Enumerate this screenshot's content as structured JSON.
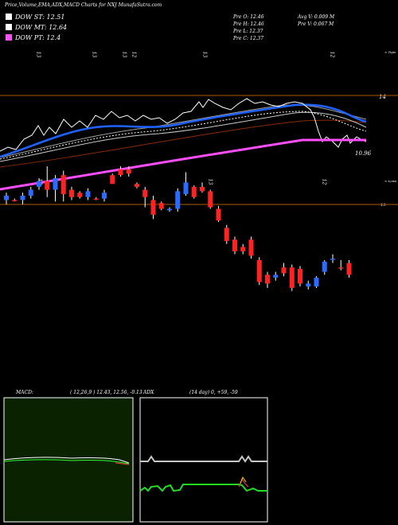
{
  "header": {
    "title": "Price,Volume,EMA,ADX,MACD Charts for NXJ MunafaSutra.com"
  },
  "legend": [
    {
      "label": "DOW ST: 12.51",
      "color": "#ffffff"
    },
    {
      "label": "DOW MT: 12.64",
      "color": "#ffffff"
    },
    {
      "label": "DOW PT: 12.4",
      "color": "#ff4dff"
    }
  ],
  "ohlc_info": {
    "open": "Pre   O: 12.46",
    "high": "Pre   H: 12.46",
    "low": "Pre   L: 12.37",
    "close": "Pre   C: 12.37",
    "avg_volume": "Avg V: 0.009 M",
    "pre_volume": "Pre   V: 0.067 M"
  },
  "labels": {
    "top_marker": "< Tops",
    "low_marker": "< Lows",
    "price_14": "14",
    "price_1096": "10.96",
    "price_13": "13",
    "top_ticks": [
      "13",
      "13",
      "13",
      "12",
      "13",
      "12"
    ],
    "mid_ticks": [
      "12",
      "13",
      "12"
    ]
  },
  "macd": {
    "label": "MACD:",
    "values": "( 12,26,9 ) 12.43,  12.56,  -0.13"
  },
  "adx": {
    "label": "ADX",
    "values": "(14  day) 0,  +59,  -59"
  },
  "chart_data": {
    "type": "candlestick",
    "title": "Price,Volume,EMA,ADX,MACD Charts for NXJ MunafaSutra.com",
    "reference_lines": [
      14,
      13
    ],
    "candles": [
      {
        "o": 13.03,
        "c": 13.06,
        "h": 13.08,
        "l": 13.0,
        "color": "blue"
      },
      {
        "o": 13.03,
        "c": 13.03,
        "h": 13.04,
        "l": 13.02,
        "color": "red"
      },
      {
        "o": 13.03,
        "c": 13.06,
        "h": 13.08,
        "l": 13.0,
        "color": "blue"
      },
      {
        "o": 13.06,
        "c": 13.1,
        "h": 13.12,
        "l": 13.04,
        "color": "blue"
      },
      {
        "o": 13.12,
        "c": 13.16,
        "h": 13.18,
        "l": 13.1,
        "color": "blue"
      },
      {
        "o": 13.16,
        "c": 13.1,
        "h": 13.26,
        "l": 13.05,
        "color": "red"
      },
      {
        "o": 13.1,
        "c": 13.18,
        "h": 13.2,
        "l": 13.02,
        "color": "blue"
      },
      {
        "o": 13.2,
        "c": 13.07,
        "h": 13.23,
        "l": 13.02,
        "color": "red"
      },
      {
        "o": 13.1,
        "c": 13.05,
        "h": 13.12,
        "l": 13.03,
        "color": "red"
      },
      {
        "o": 13.08,
        "c": 13.05,
        "h": 13.09,
        "l": 13.04,
        "color": "red"
      },
      {
        "o": 13.05,
        "c": 13.09,
        "h": 13.11,
        "l": 13.03,
        "color": "blue"
      },
      {
        "o": 13.04,
        "c": 13.04,
        "h": 13.05,
        "l": 13.03,
        "color": "red"
      },
      {
        "o": 13.04,
        "c": 13.08,
        "h": 13.1,
        "l": 13.02,
        "color": "blue"
      },
      {
        "o": 13.14,
        "c": 13.2,
        "h": 13.21,
        "l": 13.14,
        "color": "red"
      },
      {
        "o": 13.2,
        "c": 13.24,
        "h": 13.26,
        "l": 13.19,
        "color": "red"
      },
      {
        "o": 13.24,
        "c": 13.21,
        "h": 13.26,
        "l": 13.19,
        "color": "red"
      },
      {
        "o": 13.12,
        "c": 13.14,
        "h": 13.15,
        "l": 13.11,
        "color": "red"
      },
      {
        "o": 13.05,
        "c": 13.1,
        "h": 13.12,
        "l": 12.98,
        "color": "red"
      },
      {
        "o": 13.03,
        "c": 12.93,
        "h": 13.06,
        "l": 12.9,
        "color": "red"
      },
      {
        "o": 13.01,
        "c": 12.97,
        "h": 13.02,
        "l": 12.96,
        "color": "red"
      },
      {
        "o": 12.96,
        "c": 12.97,
        "h": 12.98,
        "l": 12.95,
        "color": "blue"
      },
      {
        "o": 12.97,
        "c": 13.09,
        "h": 13.11,
        "l": 12.95,
        "color": "blue"
      },
      {
        "o": 13.15,
        "c": 13.07,
        "h": 13.22,
        "l": 13.06,
        "color": "blue"
      },
      {
        "o": 13.12,
        "c": 13.05,
        "h": 13.13,
        "l": 13.04,
        "color": "red"
      },
      {
        "o": 13.12,
        "c": 13.09,
        "h": 13.15,
        "l": 13.08,
        "color": "red"
      },
      {
        "o": 13.09,
        "c": 12.98,
        "h": 13.1,
        "l": 12.97,
        "color": "red"
      },
      {
        "o": 12.97,
        "c": 12.89,
        "h": 12.99,
        "l": 12.88,
        "color": "red"
      },
      {
        "o": 12.84,
        "c": 12.75,
        "h": 12.86,
        "l": 12.73,
        "color": "red"
      },
      {
        "o": 12.76,
        "c": 12.68,
        "h": 12.78,
        "l": 12.66,
        "color": "red"
      },
      {
        "o": 12.71,
        "c": 12.68,
        "h": 12.73,
        "l": 12.66,
        "color": "red"
      },
      {
        "o": 12.76,
        "c": 12.65,
        "h": 12.78,
        "l": 12.63,
        "color": "red"
      },
      {
        "o": 12.62,
        "c": 12.47,
        "h": 12.64,
        "l": 12.45,
        "color": "red"
      },
      {
        "o": 12.52,
        "c": 12.46,
        "h": 12.54,
        "l": 12.43,
        "color": "red"
      },
      {
        "o": 12.5,
        "c": 12.52,
        "h": 12.54,
        "l": 12.48,
        "color": "blue"
      },
      {
        "o": 12.57,
        "c": 12.53,
        "h": 12.6,
        "l": 12.51,
        "color": "red"
      },
      {
        "o": 12.43,
        "c": 12.57,
        "h": 12.59,
        "l": 12.41,
        "color": "red"
      },
      {
        "o": 12.56,
        "c": 12.46,
        "h": 12.58,
        "l": 12.44,
        "color": "red"
      },
      {
        "o": 12.46,
        "c": 12.44,
        "h": 12.48,
        "l": 12.42,
        "color": "blue"
      },
      {
        "o": 12.44,
        "c": 12.5,
        "h": 12.51,
        "l": 12.43,
        "color": "blue"
      },
      {
        "o": 12.54,
        "c": 12.61,
        "h": 12.62,
        "l": 12.52,
        "color": "blue"
      },
      {
        "o": 12.63,
        "c": 12.63,
        "h": 12.66,
        "l": 12.6,
        "color": "blue"
      },
      {
        "o": 12.57,
        "c": 12.57,
        "h": 12.62,
        "l": 12.55,
        "color": "red"
      },
      {
        "o": 12.6,
        "c": 12.52,
        "h": 12.62,
        "l": 12.5,
        "color": "red"
      }
    ]
  }
}
